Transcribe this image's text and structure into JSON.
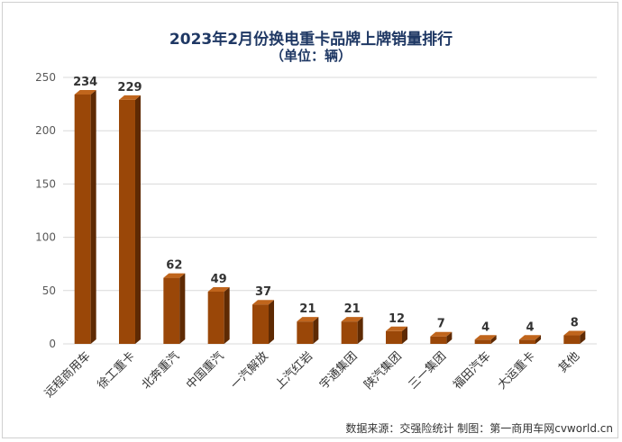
{
  "chart_data": {
    "type": "bar",
    "title": "2023年2月份换电重卡品牌上牌销量排行",
    "subtitle": "（单位：辆）",
    "categories": [
      "远程商用车",
      "徐工重卡",
      "北奔重汽",
      "中国重汽",
      "一汽解放",
      "上汽红岩",
      "宇通集团",
      "陕汽集团",
      "三一集团",
      "福田汽车",
      "大运重卡",
      "其他"
    ],
    "values": [
      234,
      229,
      62,
      49,
      37,
      21,
      21,
      12,
      7,
      4,
      4,
      8
    ],
    "yticks": [
      "0",
      "50",
      "100",
      "150",
      "200",
      "250"
    ],
    "ylim": [
      0,
      250
    ],
    "grid": true,
    "colors": {
      "bar_front": "#9a4708",
      "bar_side": "#5e2a03",
      "bar_top": "#c0651c",
      "grid": "#d9d9d9"
    }
  },
  "source": "数据来源：交强险统计  制图：第一商用车网cvworld.cn"
}
